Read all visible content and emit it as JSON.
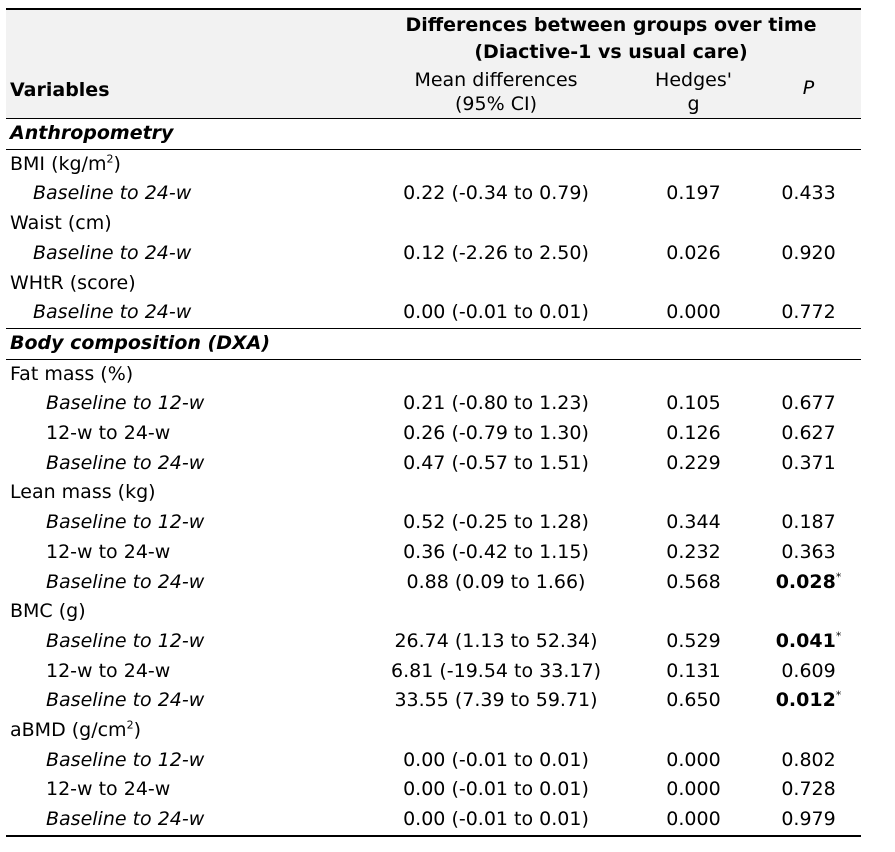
{
  "header": {
    "group_line1": "Differences between groups over time",
    "group_line2": "(Diactive-1 vs usual care)",
    "variables": "Variables",
    "mean_line1": "Mean differences",
    "mean_line2": "(95% CI)",
    "hedges_line1": "Hedges'",
    "hedges_line2": "g",
    "p": "P"
  },
  "sections": [
    {
      "title": "Anthropometry",
      "variables": [
        {
          "name": "BMI (kg/m",
          "sup": "2",
          "name_end": ")",
          "rows": [
            {
              "period": "Baseline to 24-w",
              "mean_diff": "0.22 (-0.34 to 0.79)",
              "hedges_g": "0.197",
              "p": "0.433",
              "sig": false
            }
          ]
        },
        {
          "name": "Waist (cm)",
          "rows": [
            {
              "period": "Baseline to 24-w",
              "mean_diff": "0.12 (-2.26 to 2.50)",
              "hedges_g": "0.026",
              "p": "0.920",
              "sig": false
            }
          ]
        },
        {
          "name": "WHtR (score)",
          "rows": [
            {
              "period": "Baseline to 24-w",
              "mean_diff": "0.00 (-0.01 to 0.01)",
              "hedges_g": "0.000",
              "p": "0.772",
              "sig": false
            }
          ]
        }
      ]
    },
    {
      "title": "Body composition (DXA)",
      "variables": [
        {
          "name": "Fat mass (%)",
          "rows": [
            {
              "period": "Baseline to 12-w",
              "mean_diff": "0.21 (-0.80 to 1.23)",
              "hedges_g": "0.105",
              "p": "0.677",
              "sig": false
            },
            {
              "period": "12-w to 24-w",
              "mean_diff": "0.26 (-0.79 to 1.30)",
              "hedges_g": "0.126",
              "p": "0.627",
              "sig": false
            },
            {
              "period": "Baseline to 24-w",
              "mean_diff": "0.47 (-0.57 to 1.51)",
              "hedges_g": "0.229",
              "p": "0.371",
              "sig": false
            }
          ]
        },
        {
          "name": "Lean mass (kg)",
          "rows": [
            {
              "period": "Baseline to 12-w",
              "mean_diff": "0.52 (-0.25 to 1.28)",
              "hedges_g": "0.344",
              "p": "0.187",
              "sig": false
            },
            {
              "period": "12-w to 24-w",
              "mean_diff": "0.36 (-0.42 to 1.15)",
              "hedges_g": "0.232",
              "p": "0.363",
              "sig": false
            },
            {
              "period": "Baseline to 24-w",
              "mean_diff": "0.88 (0.09 to 1.66)",
              "hedges_g": "0.568",
              "p": "0.028",
              "sig": true,
              "mark": "*"
            }
          ]
        },
        {
          "name": "BMC (g)",
          "rows": [
            {
              "period": "Baseline to 12-w",
              "mean_diff": "26.74 (1.13 to 52.34)",
              "hedges_g": "0.529",
              "p": "0.041",
              "sig": true,
              "mark": "*"
            },
            {
              "period": "12-w to 24-w",
              "mean_diff": "6.81 (-19.54 to 33.17)",
              "hedges_g": "0.131",
              "p": "0.609",
              "sig": false
            },
            {
              "period": "Baseline to 24-w",
              "mean_diff": "33.55 (7.39 to 59.71)",
              "hedges_g": "0.650",
              "p": "0.012",
              "sig": true,
              "mark": "*"
            }
          ]
        },
        {
          "name": "aBMD (g/cm",
          "sup": "2",
          "name_end": ")",
          "rows": [
            {
              "period": "Baseline to 12-w",
              "mean_diff": "0.00 (-0.01 to 0.01)",
              "hedges_g": "0.000",
              "p": "0.802",
              "sig": false
            },
            {
              "period": "12-w to 24-w",
              "mean_diff": "0.00 (-0.01 to 0.01)",
              "hedges_g": "0.000",
              "p": "0.728",
              "sig": false
            },
            {
              "period": "Baseline to 24-w",
              "mean_diff": "0.00 (-0.01 to 0.01)",
              "hedges_g": "0.000",
              "p": "0.979",
              "sig": false
            }
          ]
        }
      ]
    }
  ]
}
